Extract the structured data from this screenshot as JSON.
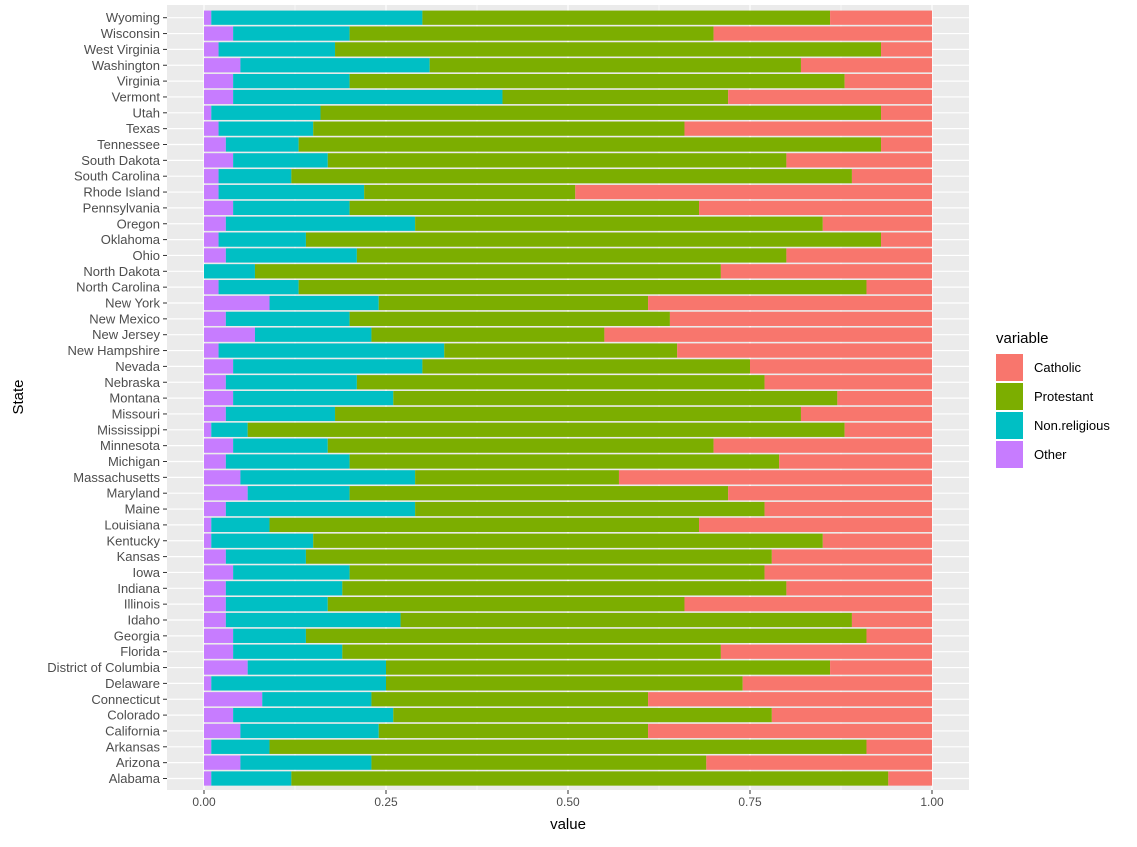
{
  "chart_data": {
    "type": "bar",
    "orientation": "horizontal",
    "stacked": true,
    "xlabel": "value",
    "ylabel": "State",
    "xlim": [
      0,
      1
    ],
    "x_ticks": [
      0,
      0.25,
      0.5,
      0.75,
      1
    ],
    "x_tick_labels": [
      "0.00",
      "0.25",
      "0.50",
      "0.75",
      "1.00"
    ],
    "grid": true,
    "legend": {
      "title": "variable",
      "position": "right"
    },
    "categories": [
      "Alabama",
      "Arizona",
      "Arkansas",
      "California",
      "Colorado",
      "Connecticut",
      "Delaware",
      "District of Columbia",
      "Florida",
      "Georgia",
      "Idaho",
      "Illinois",
      "Indiana",
      "Iowa",
      "Kansas",
      "Kentucky",
      "Louisiana",
      "Maine",
      "Maryland",
      "Massachusetts",
      "Michigan",
      "Minnesota",
      "Mississippi",
      "Missouri",
      "Montana",
      "Nebraska",
      "Nevada",
      "New Hampshire",
      "New Jersey",
      "New Mexico",
      "New York",
      "North Carolina",
      "North Dakota",
      "Ohio",
      "Oklahoma",
      "Oregon",
      "Pennsylvania",
      "Rhode Island",
      "South Carolina",
      "South Dakota",
      "Tennessee",
      "Texas",
      "Utah",
      "Vermont",
      "Virginia",
      "Washington",
      "West Virginia",
      "Wisconsin",
      "Wyoming"
    ],
    "series": [
      {
        "name": "Other",
        "color": "#C77CFF",
        "values": [
          0.01,
          0.05,
          0.01,
          0.05,
          0.04,
          0.08,
          0.01,
          0.06,
          0.04,
          0.04,
          0.03,
          0.03,
          0.03,
          0.04,
          0.03,
          0.01,
          0.01,
          0.03,
          0.06,
          0.05,
          0.03,
          0.04,
          0.01,
          0.03,
          0.04,
          0.03,
          0.04,
          0.02,
          0.07,
          0.03,
          0.09,
          0.02,
          0.0,
          0.03,
          0.02,
          0.03,
          0.04,
          0.02,
          0.02,
          0.04,
          0.03,
          0.02,
          0.01,
          0.04,
          0.04,
          0.05,
          0.02,
          0.04,
          0.01
        ]
      },
      {
        "name": "Non.religious",
        "color": "#00BFC4",
        "values": [
          0.11,
          0.18,
          0.08,
          0.19,
          0.22,
          0.15,
          0.24,
          0.19,
          0.15,
          0.1,
          0.24,
          0.14,
          0.16,
          0.16,
          0.11,
          0.14,
          0.08,
          0.26,
          0.14,
          0.24,
          0.17,
          0.13,
          0.05,
          0.15,
          0.22,
          0.18,
          0.26,
          0.31,
          0.16,
          0.17,
          0.15,
          0.11,
          0.07,
          0.18,
          0.12,
          0.26,
          0.16,
          0.2,
          0.1,
          0.13,
          0.1,
          0.13,
          0.15,
          0.37,
          0.16,
          0.26,
          0.16,
          0.16,
          0.29
        ]
      },
      {
        "name": "Protestant",
        "color": "#7CAE00",
        "values": [
          0.82,
          0.46,
          0.82,
          0.37,
          0.52,
          0.38,
          0.49,
          0.61,
          0.52,
          0.77,
          0.62,
          0.49,
          0.61,
          0.57,
          0.64,
          0.7,
          0.59,
          0.48,
          0.52,
          0.28,
          0.59,
          0.53,
          0.82,
          0.64,
          0.61,
          0.56,
          0.45,
          0.32,
          0.32,
          0.44,
          0.37,
          0.78,
          0.64,
          0.59,
          0.79,
          0.56,
          0.48,
          0.29,
          0.77,
          0.63,
          0.8,
          0.51,
          0.77,
          0.31,
          0.68,
          0.51,
          0.75,
          0.5,
          0.56
        ]
      },
      {
        "name": "Catholic",
        "color": "#F8766D",
        "values": [
          0.06,
          0.31,
          0.09,
          0.39,
          0.22,
          0.39,
          0.26,
          0.14,
          0.29,
          0.09,
          0.11,
          0.34,
          0.2,
          0.23,
          0.22,
          0.15,
          0.32,
          0.23,
          0.28,
          0.43,
          0.21,
          0.3,
          0.12,
          0.18,
          0.13,
          0.23,
          0.25,
          0.35,
          0.45,
          0.36,
          0.39,
          0.09,
          0.29,
          0.2,
          0.07,
          0.15,
          0.32,
          0.49,
          0.11,
          0.2,
          0.07,
          0.34,
          0.07,
          0.28,
          0.12,
          0.18,
          0.07,
          0.3,
          0.14
        ]
      }
    ],
    "legend_order": [
      "Catholic",
      "Protestant",
      "Non.religious",
      "Other"
    ]
  }
}
